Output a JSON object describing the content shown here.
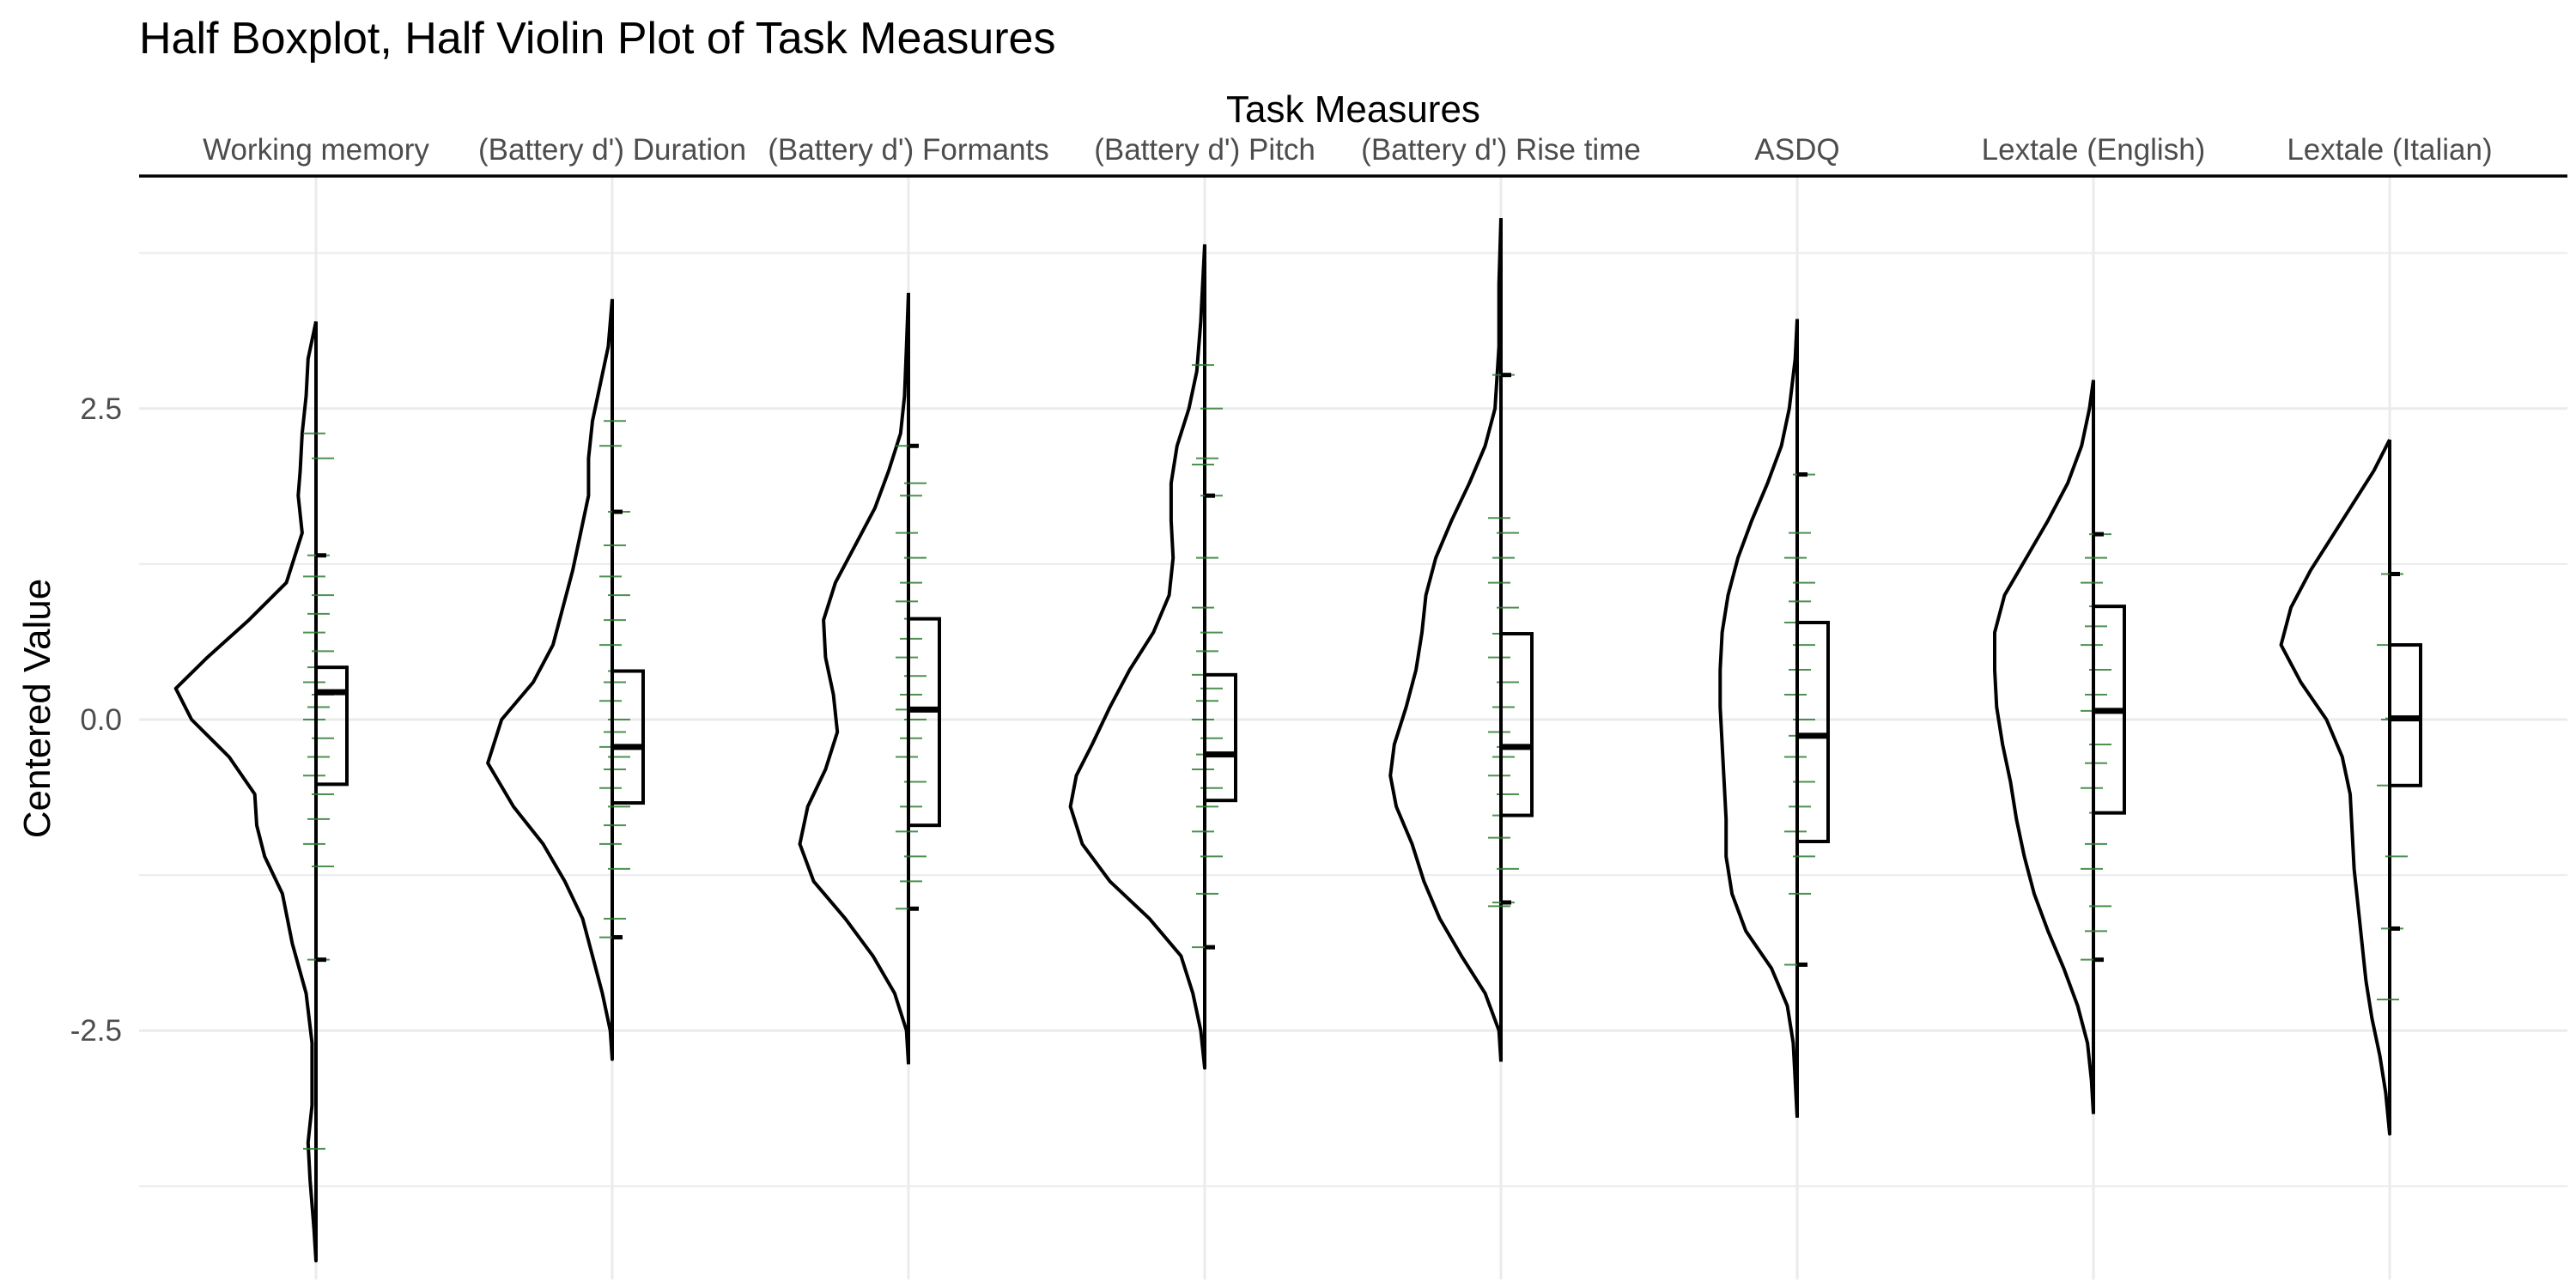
{
  "chart_data": {
    "type": "violin",
    "title": "Half Boxplot, Half Violin Plot of Task Measures",
    "xlabel": "Task Measures",
    "ylabel": "Centered Value",
    "x_axis_position": "top",
    "ylim": [
      -4.5,
      4.3
    ],
    "yticks": [
      -2.5,
      0.0,
      2.5
    ],
    "ytick_labels": [
      "-2.5",
      "0.0",
      "2.5"
    ],
    "grid": true,
    "colors": {
      "outline": "#000000",
      "points": "#2e7d32",
      "grid": "#ebebeb",
      "axis": "#000000"
    },
    "categories": [
      "Working memory",
      "(Battery d') Duration",
      "(Battery d') Formants",
      "(Battery d') Pitch",
      "(Battery d') Rise time",
      "ASDQ",
      "Lextale (English)",
      "Lextale (Italian)"
    ],
    "boxes": [
      {
        "q1": -0.52,
        "median": 0.22,
        "q3": 0.42,
        "whisker_low": -1.93,
        "whisker_high": 1.32
      },
      {
        "q1": -0.67,
        "median": -0.22,
        "q3": 0.39,
        "whisker_low": -1.75,
        "whisker_high": 1.67
      },
      {
        "q1": -0.85,
        "median": 0.08,
        "q3": 0.81,
        "whisker_low": -1.52,
        "whisker_high": 2.2
      },
      {
        "q1": -0.65,
        "median": -0.28,
        "q3": 0.36,
        "whisker_low": -1.83,
        "whisker_high": 1.8
      },
      {
        "q1": -0.77,
        "median": -0.22,
        "q3": 0.69,
        "whisker_low": -1.47,
        "whisker_high": 2.77
      },
      {
        "q1": -0.98,
        "median": -0.13,
        "q3": 0.78,
        "whisker_low": -1.97,
        "whisker_high": 1.97
      },
      {
        "q1": -0.75,
        "median": 0.07,
        "q3": 0.91,
        "whisker_low": -1.93,
        "whisker_high": 1.49
      },
      {
        "q1": -0.53,
        "median": 0.01,
        "q3": 0.6,
        "whisker_low": -1.68,
        "whisker_high": 1.17
      }
    ],
    "violins": [
      {
        "ymin": -4.35,
        "ymax": 3.2,
        "density": [
          [
            -4.35,
            0
          ],
          [
            -4.1,
            0.01
          ],
          [
            -3.7,
            0.03
          ],
          [
            -3.4,
            0.04
          ],
          [
            -3.1,
            0.02
          ],
          [
            -2.6,
            0.02
          ],
          [
            -2.2,
            0.05
          ],
          [
            -1.8,
            0.12
          ],
          [
            -1.4,
            0.17
          ],
          [
            -1.1,
            0.26
          ],
          [
            -0.85,
            0.3
          ],
          [
            -0.6,
            0.31
          ],
          [
            -0.3,
            0.44
          ],
          [
            0.0,
            0.63
          ],
          [
            0.25,
            0.71
          ],
          [
            0.5,
            0.55
          ],
          [
            0.8,
            0.34
          ],
          [
            1.1,
            0.15
          ],
          [
            1.5,
            0.07
          ],
          [
            1.8,
            0.09
          ],
          [
            2.0,
            0.08
          ],
          [
            2.3,
            0.07
          ],
          [
            2.6,
            0.05
          ],
          [
            2.9,
            0.04
          ],
          [
            3.2,
            0
          ]
        ]
      },
      {
        "ymin": -2.73,
        "ymax": 3.38,
        "density": [
          [
            -2.73,
            0
          ],
          [
            -2.5,
            0.01
          ],
          [
            -2.2,
            0.05
          ],
          [
            -1.9,
            0.1
          ],
          [
            -1.6,
            0.15
          ],
          [
            -1.3,
            0.24
          ],
          [
            -1.0,
            0.35
          ],
          [
            -0.7,
            0.5
          ],
          [
            -0.35,
            0.63
          ],
          [
            0.0,
            0.56
          ],
          [
            0.3,
            0.4
          ],
          [
            0.6,
            0.3
          ],
          [
            0.9,
            0.25
          ],
          [
            1.2,
            0.2
          ],
          [
            1.5,
            0.16
          ],
          [
            1.8,
            0.12
          ],
          [
            2.1,
            0.12
          ],
          [
            2.4,
            0.1
          ],
          [
            2.7,
            0.06
          ],
          [
            3.0,
            0.02
          ],
          [
            3.38,
            0
          ]
        ]
      },
      {
        "ymin": -2.77,
        "ymax": 3.43,
        "density": [
          [
            -2.77,
            0
          ],
          [
            -2.5,
            0.01
          ],
          [
            -2.2,
            0.07
          ],
          [
            -1.9,
            0.18
          ],
          [
            -1.6,
            0.32
          ],
          [
            -1.3,
            0.48
          ],
          [
            -1.0,
            0.55
          ],
          [
            -0.7,
            0.51
          ],
          [
            -0.4,
            0.42
          ],
          [
            -0.1,
            0.36
          ],
          [
            0.2,
            0.38
          ],
          [
            0.5,
            0.42
          ],
          [
            0.8,
            0.43
          ],
          [
            1.1,
            0.37
          ],
          [
            1.4,
            0.27
          ],
          [
            1.7,
            0.17
          ],
          [
            2.0,
            0.1
          ],
          [
            2.3,
            0.04
          ],
          [
            2.6,
            0.02
          ],
          [
            3.0,
            0.01
          ],
          [
            3.43,
            0
          ]
        ]
      },
      {
        "ymin": -2.8,
        "ymax": 3.82,
        "density": [
          [
            -2.8,
            0
          ],
          [
            -2.5,
            0.02
          ],
          [
            -2.2,
            0.06
          ],
          [
            -1.9,
            0.12
          ],
          [
            -1.6,
            0.28
          ],
          [
            -1.3,
            0.48
          ],
          [
            -1.0,
            0.62
          ],
          [
            -0.7,
            0.68
          ],
          [
            -0.45,
            0.65
          ],
          [
            -0.2,
            0.57
          ],
          [
            0.1,
            0.48
          ],
          [
            0.4,
            0.38
          ],
          [
            0.7,
            0.26
          ],
          [
            1.0,
            0.18
          ],
          [
            1.3,
            0.16
          ],
          [
            1.6,
            0.17
          ],
          [
            1.9,
            0.17
          ],
          [
            2.2,
            0.14
          ],
          [
            2.5,
            0.08
          ],
          [
            2.8,
            0.04
          ],
          [
            3.2,
            0.02
          ],
          [
            3.82,
            0
          ]
        ]
      },
      {
        "ymin": -2.75,
        "ymax": 4.03,
        "density": [
          [
            -2.75,
            0
          ],
          [
            -2.5,
            0.01
          ],
          [
            -2.2,
            0.08
          ],
          [
            -1.9,
            0.2
          ],
          [
            -1.6,
            0.31
          ],
          [
            -1.3,
            0.39
          ],
          [
            -1.0,
            0.45
          ],
          [
            -0.7,
            0.53
          ],
          [
            -0.45,
            0.56
          ],
          [
            -0.2,
            0.54
          ],
          [
            0.1,
            0.48
          ],
          [
            0.4,
            0.43
          ],
          [
            0.7,
            0.4
          ],
          [
            1.0,
            0.38
          ],
          [
            1.3,
            0.33
          ],
          [
            1.6,
            0.25
          ],
          [
            1.9,
            0.16
          ],
          [
            2.2,
            0.08
          ],
          [
            2.5,
            0.03
          ],
          [
            3.0,
            0.01
          ],
          [
            3.5,
            0.01
          ],
          [
            4.03,
            0
          ]
        ]
      },
      {
        "ymin": -3.2,
        "ymax": 3.22,
        "density": [
          [
            -3.2,
            0
          ],
          [
            -2.9,
            0.01
          ],
          [
            -2.6,
            0.02
          ],
          [
            -2.3,
            0.05
          ],
          [
            -2.0,
            0.13
          ],
          [
            -1.7,
            0.26
          ],
          [
            -1.4,
            0.33
          ],
          [
            -1.1,
            0.36
          ],
          [
            -0.8,
            0.36
          ],
          [
            -0.5,
            0.37
          ],
          [
            -0.2,
            0.38
          ],
          [
            0.1,
            0.39
          ],
          [
            0.4,
            0.39
          ],
          [
            0.7,
            0.38
          ],
          [
            1.0,
            0.35
          ],
          [
            1.3,
            0.3
          ],
          [
            1.6,
            0.23
          ],
          [
            1.9,
            0.15
          ],
          [
            2.2,
            0.08
          ],
          [
            2.5,
            0.04
          ],
          [
            2.9,
            0.01
          ],
          [
            3.22,
            0
          ]
        ]
      },
      {
        "ymin": -3.17,
        "ymax": 2.73,
        "density": [
          [
            -3.17,
            0
          ],
          [
            -2.9,
            0.01
          ],
          [
            -2.6,
            0.03
          ],
          [
            -2.3,
            0.08
          ],
          [
            -2.0,
            0.15
          ],
          [
            -1.7,
            0.23
          ],
          [
            -1.4,
            0.3
          ],
          [
            -1.1,
            0.35
          ],
          [
            -0.8,
            0.39
          ],
          [
            -0.5,
            0.42
          ],
          [
            -0.2,
            0.46
          ],
          [
            0.1,
            0.49
          ],
          [
            0.4,
            0.5
          ],
          [
            0.7,
            0.5
          ],
          [
            1.0,
            0.45
          ],
          [
            1.3,
            0.34
          ],
          [
            1.6,
            0.23
          ],
          [
            1.9,
            0.13
          ],
          [
            2.2,
            0.06
          ],
          [
            2.5,
            0.02
          ],
          [
            2.73,
            0
          ]
        ]
      },
      {
        "ymin": -3.33,
        "ymax": 2.25,
        "density": [
          [
            -3.33,
            0
          ],
          [
            -3.0,
            0.02
          ],
          [
            -2.7,
            0.05
          ],
          [
            -2.4,
            0.09
          ],
          [
            -2.1,
            0.12
          ],
          [
            -1.8,
            0.14
          ],
          [
            -1.5,
            0.16
          ],
          [
            -1.2,
            0.18
          ],
          [
            -0.9,
            0.19
          ],
          [
            -0.6,
            0.2
          ],
          [
            -0.3,
            0.24
          ],
          [
            0.0,
            0.32
          ],
          [
            0.3,
            0.45
          ],
          [
            0.6,
            0.55
          ],
          [
            0.9,
            0.5
          ],
          [
            1.2,
            0.4
          ],
          [
            1.5,
            0.28
          ],
          [
            1.8,
            0.16
          ],
          [
            2.0,
            0.08
          ],
          [
            2.25,
            0
          ]
        ]
      }
    ],
    "points": [
      [
        -3.45,
        -1.93,
        -1.18,
        -1.0,
        -0.8,
        -0.6,
        -0.45,
        -0.3,
        -0.15,
        0.0,
        0.1,
        0.2,
        0.3,
        0.42,
        0.55,
        0.7,
        0.85,
        1.0,
        1.15,
        1.32,
        2.1,
        2.3
      ],
      [
        -1.75,
        -1.6,
        -1.2,
        -1.0,
        -0.85,
        -0.7,
        -0.55,
        -0.4,
        -0.3,
        -0.22,
        -0.1,
        0.0,
        0.15,
        0.3,
        0.39,
        0.6,
        0.8,
        1.0,
        1.15,
        1.4,
        1.67,
        2.2,
        2.4
      ],
      [
        -1.52,
        -1.3,
        -1.1,
        -0.9,
        -0.7,
        -0.5,
        -0.3,
        -0.15,
        0.0,
        0.08,
        0.2,
        0.35,
        0.5,
        0.65,
        0.81,
        0.95,
        1.1,
        1.3,
        1.5,
        1.8,
        1.9,
        2.2
      ],
      [
        -1.83,
        -1.4,
        -1.1,
        -0.9,
        -0.7,
        -0.55,
        -0.4,
        -0.28,
        -0.15,
        0.0,
        0.15,
        0.25,
        0.36,
        0.55,
        0.7,
        0.9,
        1.3,
        1.8,
        2.05,
        2.1,
        2.5,
        2.85
      ],
      [
        -1.5,
        -1.47,
        -1.2,
        -0.95,
        -0.77,
        -0.6,
        -0.45,
        -0.3,
        -0.22,
        -0.1,
        0.1,
        0.3,
        0.5,
        0.69,
        0.9,
        1.1,
        1.3,
        1.5,
        1.62,
        2.77
      ],
      [
        -1.97,
        -1.4,
        -1.1,
        -0.9,
        -0.7,
        -0.5,
        -0.3,
        -0.13,
        0.0,
        0.2,
        0.4,
        0.6,
        0.78,
        0.95,
        1.1,
        1.3,
        1.5,
        1.97
      ],
      [
        -1.93,
        -1.7,
        -1.5,
        -1.2,
        -1.0,
        -0.75,
        -0.55,
        -0.35,
        -0.2,
        0.07,
        0.2,
        0.4,
        0.6,
        0.75,
        0.91,
        1.1,
        1.3,
        1.49
      ],
      [
        -2.25,
        -1.68,
        -1.1,
        -0.53,
        0.0,
        0.01,
        0.6,
        1.17
      ]
    ]
  }
}
